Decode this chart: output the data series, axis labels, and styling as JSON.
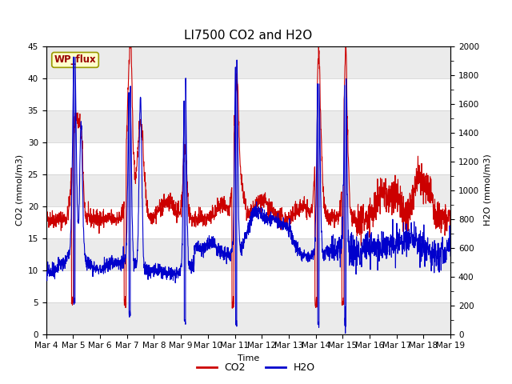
{
  "title": "LI7500 CO2 and H2O",
  "xlabel": "Time",
  "ylabel_left": "CO2 (mmol/m3)",
  "ylabel_right": "H2O (mmol/m3)",
  "xlim": [
    0,
    15
  ],
  "ylim_left": [
    0,
    45
  ],
  "ylim_right": [
    0,
    2000
  ],
  "yticks_left": [
    0,
    5,
    10,
    15,
    20,
    25,
    30,
    35,
    40,
    45
  ],
  "yticks_right": [
    0,
    200,
    400,
    600,
    800,
    1000,
    1200,
    1400,
    1600,
    1800,
    2000
  ],
  "xtick_labels": [
    "Mar 4",
    "Mar 5",
    "Mar 6",
    "Mar 7",
    "Mar 8",
    "Mar 9",
    "Mar 10",
    "Mar 11",
    "Mar 12",
    "Mar 13",
    "Mar 14",
    "Mar 15",
    "Mar 16",
    "Mar 17",
    "Mar 18",
    "Mar 19"
  ],
  "legend_label_co2": "CO2",
  "legend_label_h2o": "H2O",
  "color_co2": "#cc0000",
  "color_h2o": "#0000cc",
  "site_label": "WP_flux",
  "bg_color": "#ffffff",
  "plot_bg_color": "#ffffff",
  "title_fontsize": 11,
  "label_fontsize": 8,
  "tick_fontsize": 7.5
}
